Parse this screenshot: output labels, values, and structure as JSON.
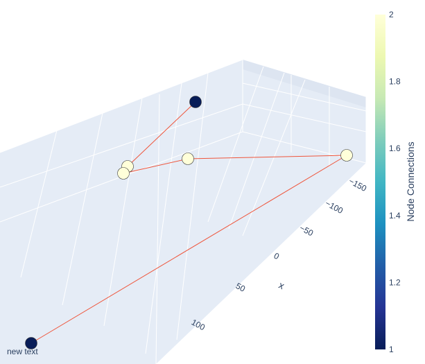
{
  "chart_data": {
    "type": "scatter3d",
    "scene": {
      "background": "#e5ecf6",
      "grid_color": "#ffffff",
      "grid": true,
      "axes": {
        "x": {
          "title": "x",
          "ticks": [
            "−150",
            "−100",
            "−50",
            "0",
            "50",
            "100"
          ]
        }
      }
    },
    "nodes": [
      {
        "x": -150,
        "connections": 2
      },
      {
        "x": -60,
        "connections": 2
      },
      {
        "x": -20,
        "connections": 2
      },
      {
        "x": -10,
        "connections": 2
      },
      {
        "x": -40,
        "connections": 1
      },
      {
        "x": 130,
        "connections": 1
      }
    ],
    "edges": [
      [
        4,
        2
      ],
      [
        2,
        3
      ],
      [
        3,
        1
      ],
      [
        1,
        0
      ],
      [
        0,
        5
      ]
    ],
    "edge_color": "#ef553b",
    "node_outline": "#333333",
    "colorscale": "YlGnBu",
    "colorbar": {
      "title": "Node Connections",
      "range": [
        1,
        2
      ],
      "ticks": [
        "1",
        "1.2",
        "1.4",
        "1.6",
        "1.8",
        "2"
      ],
      "colors": [
        "#081d58",
        "#253494",
        "#225ea8",
        "#1d91c0",
        "#41b6c4",
        "#7fcdbb",
        "#c7e9b4",
        "#edf8b1",
        "#ffffd9"
      ]
    },
    "annotation": "new text"
  }
}
